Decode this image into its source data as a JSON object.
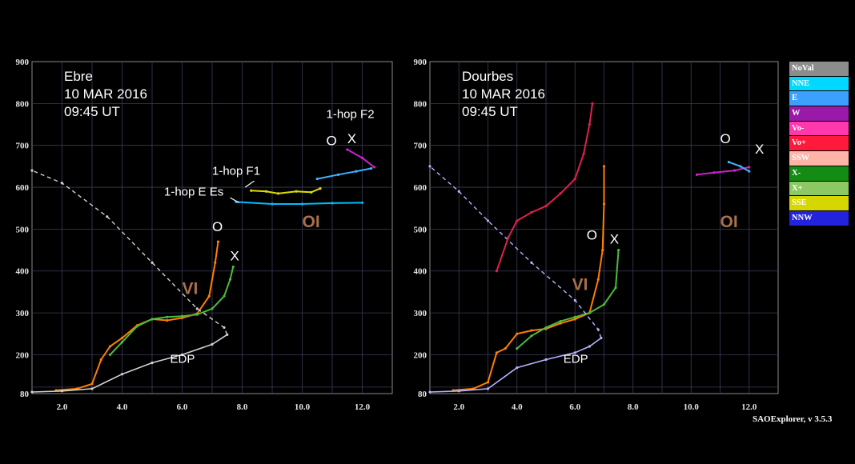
{
  "chart_data": [
    {
      "type": "scatter",
      "station": "Ebre",
      "date": "10 MAR 2016",
      "time": "09:45 UT",
      "x_ticks": [
        "2.0",
        "4.0",
        "6.0",
        "8.0",
        "10.0",
        "12.0"
      ],
      "y_ticks": [
        "80",
        "200",
        "300",
        "400",
        "500",
        "600",
        "700",
        "800",
        "900"
      ],
      "xlim": [
        1.0,
        13.0
      ],
      "ylim": [
        80,
        900
      ],
      "labels": {
        "o_vi": "O",
        "x_vi": "X",
        "vi": "VI",
        "o_oi": "O",
        "x_oi": "X",
        "oi": "OI",
        "edp": "EDP",
        "f2": "1-hop F2",
        "f1": "1-hop F1",
        "ees": "1-hop E Es"
      },
      "series": [
        {
          "color": "#ff7f00",
          "points": [
            [
              1.8,
              90
            ],
            [
              2.5,
              95
            ],
            [
              3.0,
              110
            ],
            [
              3.3,
              185
            ],
            [
              3.6,
              220
            ],
            [
              4.0,
              240
            ],
            [
              4.5,
              270
            ],
            [
              5.0,
              285
            ],
            [
              5.5,
              282
            ],
            [
              6.0,
              288
            ],
            [
              6.5,
              298
            ],
            [
              6.9,
              340
            ],
            [
              7.1,
              420
            ],
            [
              7.2,
              470
            ]
          ]
        },
        {
          "color": "#4cbb3c",
          "points": [
            [
              3.6,
              200
            ],
            [
              4.0,
              230
            ],
            [
              4.5,
              268
            ],
            [
              5.0,
              285
            ],
            [
              5.5,
              290
            ],
            [
              6.0,
              292
            ],
            [
              6.5,
              296
            ],
            [
              7.0,
              310
            ],
            [
              7.4,
              340
            ],
            [
              7.6,
              380
            ],
            [
              7.7,
              410
            ]
          ]
        },
        {
          "color": "#d0d0d0",
          "points": [
            [
              1.0,
              85
            ],
            [
              2.0,
              88
            ],
            [
              3.0,
              95
            ],
            [
              4.0,
              140
            ],
            [
              5.0,
              175
            ],
            [
              6.0,
              200
            ],
            [
              7.0,
              225
            ],
            [
              7.5,
              248
            ],
            [
              7.4,
              265
            ],
            [
              6.5,
              310
            ],
            [
              5.0,
              420
            ],
            [
              3.5,
              530
            ],
            [
              2.0,
              610
            ],
            [
              1.0,
              640
            ]
          ]
        },
        {
          "color": "#dddd00",
          "points": [
            [
              8.3,
              592
            ],
            [
              8.8,
              590
            ],
            [
              9.2,
              585
            ],
            [
              9.8,
              590
            ],
            [
              10.3,
              588
            ],
            [
              10.6,
              597
            ]
          ]
        },
        {
          "color": "#3cb4ff",
          "points": [
            [
              10.5,
              620
            ],
            [
              11.2,
              630
            ],
            [
              11.8,
              638
            ],
            [
              12.3,
              645
            ]
          ]
        },
        {
          "color": "#00bbff",
          "points": [
            [
              7.8,
              565
            ],
            [
              9.0,
              560
            ],
            [
              10.0,
              560
            ],
            [
              11.0,
              562
            ],
            [
              12.0,
              563
            ]
          ]
        },
        {
          "color": "#cc22cc",
          "points": [
            [
              11.5,
              690
            ],
            [
              12.0,
              670
            ],
            [
              12.4,
              648
            ]
          ]
        }
      ]
    },
    {
      "type": "scatter",
      "station": "Dourbes",
      "date": "10 MAR 2016",
      "time": "09:45 UT",
      "x_ticks": [
        "2.0",
        "4.0",
        "6.0",
        "8.0",
        "10.0",
        "12.0"
      ],
      "y_ticks": [
        "80",
        "200",
        "300",
        "400",
        "500",
        "600",
        "700",
        "800",
        "900"
      ],
      "xlim": [
        1.0,
        13.0
      ],
      "ylim": [
        80,
        900
      ],
      "labels": {
        "o_vi": "O",
        "x_vi": "X",
        "vi": "VI",
        "o_oi": "O",
        "x_oi": "X",
        "oi": "OI",
        "edp": "EDP"
      },
      "series": [
        {
          "color": "#ff7f00",
          "points": [
            [
              1.8,
              90
            ],
            [
              2.5,
              95
            ],
            [
              3.0,
              115
            ],
            [
              3.3,
              205
            ],
            [
              3.6,
              215
            ],
            [
              4.0,
              250
            ],
            [
              4.5,
              258
            ],
            [
              5.0,
              262
            ],
            [
              5.5,
              275
            ],
            [
              6.0,
              285
            ],
            [
              6.5,
              300
            ],
            [
              6.8,
              380
            ],
            [
              6.95,
              450
            ],
            [
              7.0,
              560
            ],
            [
              7.0,
              650
            ]
          ]
        },
        {
          "color": "#4cbb3c",
          "points": [
            [
              4.0,
              215
            ],
            [
              4.5,
              245
            ],
            [
              5.0,
              265
            ],
            [
              5.5,
              280
            ],
            [
              6.0,
              290
            ],
            [
              6.5,
              300
            ],
            [
              7.0,
              320
            ],
            [
              7.4,
              360
            ],
            [
              7.5,
              450
            ]
          ]
        },
        {
          "color": "#b4b4ff",
          "points": [
            [
              1.0,
              85
            ],
            [
              2.0,
              88
            ],
            [
              3.0,
              95
            ],
            [
              4.0,
              160
            ],
            [
              5.0,
              185
            ],
            [
              6.0,
              205
            ],
            [
              6.5,
              220
            ],
            [
              6.9,
              240
            ],
            [
              6.8,
              260
            ],
            [
              6.0,
              330
            ],
            [
              4.5,
              420
            ],
            [
              3.0,
              520
            ],
            [
              2.0,
              590
            ],
            [
              1.0,
              650
            ]
          ]
        },
        {
          "color": "#e02050",
          "points": [
            [
              3.3,
              400
            ],
            [
              3.7,
              480
            ],
            [
              4.0,
              520
            ],
            [
              4.5,
              540
            ],
            [
              5.0,
              555
            ],
            [
              5.5,
              585
            ],
            [
              6.0,
              620
            ],
            [
              6.3,
              680
            ],
            [
              6.5,
              750
            ],
            [
              6.6,
              800
            ]
          ]
        },
        {
          "color": "#cc22cc",
          "points": [
            [
              10.2,
              630
            ],
            [
              10.8,
              635
            ],
            [
              11.5,
              640
            ],
            [
              12.0,
              648
            ]
          ]
        },
        {
          "color": "#3cb4ff",
          "points": [
            [
              11.3,
              660
            ],
            [
              11.7,
              650
            ],
            [
              12.0,
              638
            ]
          ]
        }
      ]
    }
  ],
  "legend": {
    "items": [
      {
        "label": "NoVal",
        "color": "#8c8c8c"
      },
      {
        "label": "NNE",
        "color": "#00d9ff"
      },
      {
        "label": "E",
        "color": "#3ca0ff"
      },
      {
        "label": "W",
        "color": "#9b19a8"
      },
      {
        "label": "Vo-",
        "color": "#ff38ae"
      },
      {
        "label": "Vo+",
        "color": "#ff1a3c"
      },
      {
        "label": "SSW",
        "color": "#ffb4a8"
      },
      {
        "label": "X-",
        "color": "#148c14"
      },
      {
        "label": "X+",
        "color": "#8cc864"
      },
      {
        "label": "SSE",
        "color": "#d7d700"
      },
      {
        "label": "NNW",
        "color": "#2323dc"
      }
    ]
  },
  "footer": "SAOExplorer, v 3.5.3"
}
